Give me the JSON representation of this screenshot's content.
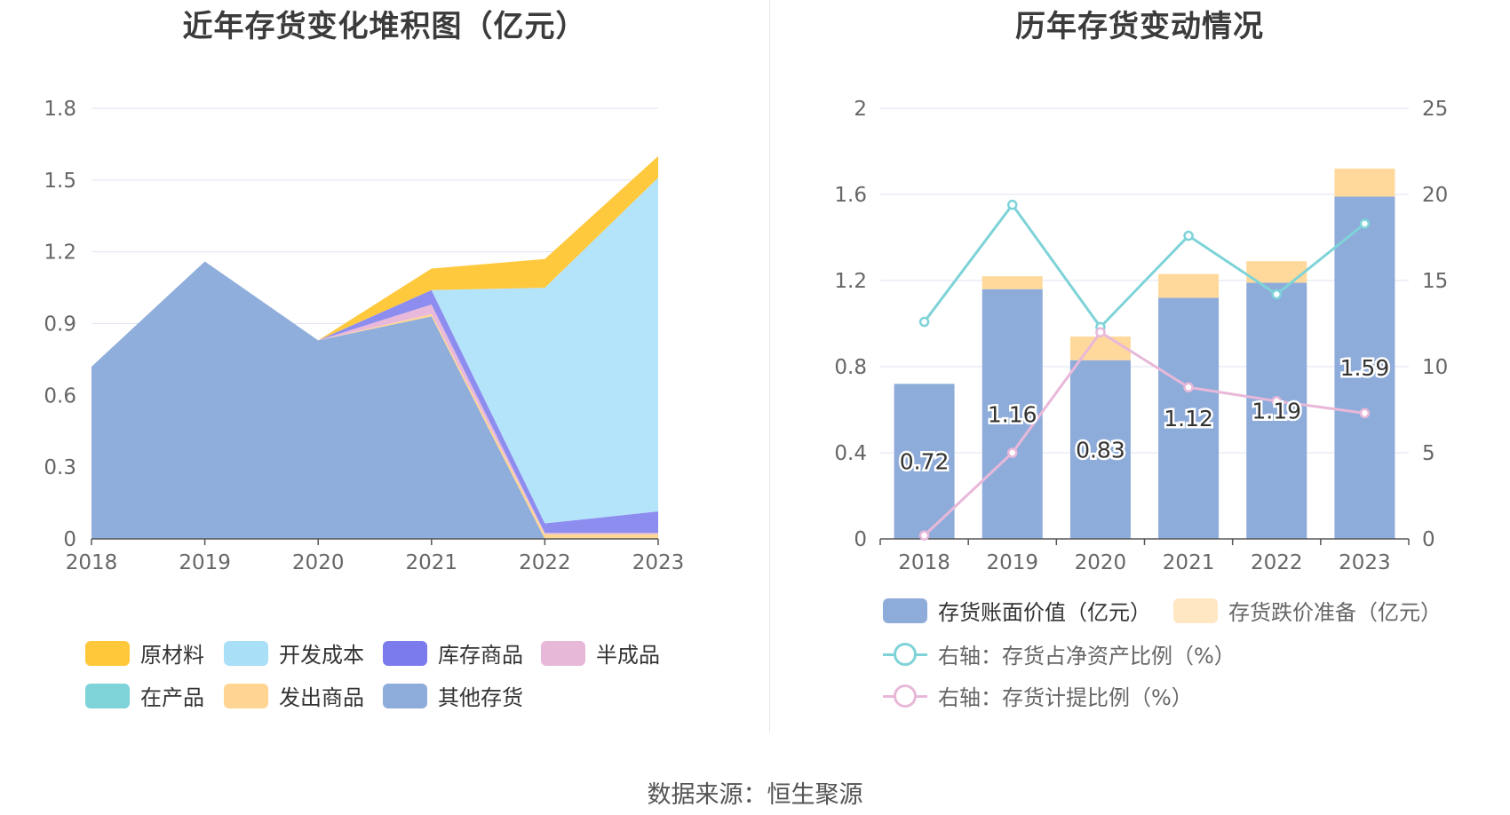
{
  "chart_data": [
    {
      "type": "area",
      "stacked": true,
      "title": "近年存货变化堆积图（亿元）",
      "categories": [
        "2018",
        "2019",
        "2020",
        "2021",
        "2022",
        "2023"
      ],
      "ylim": [
        0,
        1.8
      ],
      "yticks": [
        "0",
        "0.3",
        "0.6",
        "0.9",
        "1.2",
        "1.5",
        "1.8"
      ],
      "series": [
        {
          "name": "其他存货",
          "color": "#8eacda",
          "values": [
            0.72,
            1.16,
            0.83,
            0.93,
            0.0,
            0.0
          ]
        },
        {
          "name": "发出商品",
          "color": "#ffd591",
          "values": [
            0,
            0,
            0,
            0.01,
            0.02,
            0.02
          ]
        },
        {
          "name": "在产品",
          "color": "#7ed3d8",
          "values": [
            0,
            0,
            0,
            0,
            0,
            0
          ]
        },
        {
          "name": "半成品",
          "color": "#e8b8d9",
          "values": [
            0,
            0,
            0,
            0.04,
            0.005,
            0.005
          ]
        },
        {
          "name": "库存商品",
          "color": "#8b8bf0",
          "values": [
            0,
            0,
            0,
            0.06,
            0.04,
            0.09
          ]
        },
        {
          "name": "开发成本",
          "color": "#b3e3fa",
          "values": [
            0,
            0,
            0,
            0,
            0.985,
            1.395
          ]
        },
        {
          "name": "原材料",
          "color": "#ffc83a",
          "values": [
            0,
            0,
            0,
            0.09,
            0.12,
            0.09
          ]
        }
      ],
      "legend": [
        {
          "name": "原材料",
          "color": "#ffc83a"
        },
        {
          "name": "开发成本",
          "color": "#a9dff7"
        },
        {
          "name": "库存商品",
          "color": "#7b7bed"
        },
        {
          "name": "半成品",
          "color": "#e8b8d9"
        },
        {
          "name": "在产品",
          "color": "#7ed3d8"
        },
        {
          "name": "发出商品",
          "color": "#ffd591"
        },
        {
          "name": "其他存货",
          "color": "#8eacda"
        }
      ]
    },
    {
      "type": "bar+line",
      "title": "历年存货变动情况",
      "categories": [
        "2018",
        "2019",
        "2020",
        "2021",
        "2022",
        "2023"
      ],
      "ylim_left": [
        0,
        2
      ],
      "yticks_left": [
        "0",
        "0.4",
        "0.8",
        "1.2",
        "1.6",
        "2"
      ],
      "ylim_right": [
        0,
        25
      ],
      "yticks_right": [
        "0",
        "5",
        "10",
        "15",
        "20",
        "25"
      ],
      "series": [
        {
          "name": "存货账面价值（亿元）",
          "kind": "bar",
          "axis": "left",
          "color": "#8eacda",
          "values": [
            0.72,
            1.16,
            0.83,
            1.12,
            1.19,
            1.59
          ],
          "labels": [
            "0.72",
            "1.16",
            "0.83",
            "1.12",
            "1.19",
            "1.59"
          ]
        },
        {
          "name": "存货跌价准备（亿元）",
          "kind": "bar",
          "axis": "left",
          "stacked": true,
          "color": "#ffd99b",
          "values": [
            0.0,
            0.06,
            0.11,
            0.11,
            0.1,
            0.13
          ]
        },
        {
          "name": "右轴：存货占净资产比例（%）",
          "kind": "line",
          "axis": "right",
          "color": "#7ed3d8",
          "values": [
            12.6,
            19.4,
            12.3,
            17.6,
            14.2,
            18.3
          ]
        },
        {
          "name": "右轴：存货计提比例（%）",
          "kind": "line",
          "axis": "right",
          "color": "#e8b8d9",
          "values": [
            0.2,
            5.0,
            12.0,
            8.8,
            8.0,
            7.3
          ]
        }
      ],
      "legend": [
        {
          "name": "存货账面价值（亿元）",
          "color": "#8eacda",
          "kind": "bar"
        },
        {
          "name": "存货跌价准备（亿元）",
          "color": "#ffe7c4",
          "kind": "bar"
        },
        {
          "name": "右轴：存货占净资产比例（%）",
          "color": "#7ed3d8",
          "kind": "line"
        },
        {
          "name": "右轴：存货计提比例（%）",
          "color": "#e8b8d9",
          "kind": "line"
        }
      ]
    }
  ],
  "source": "数据来源：恒生聚源"
}
